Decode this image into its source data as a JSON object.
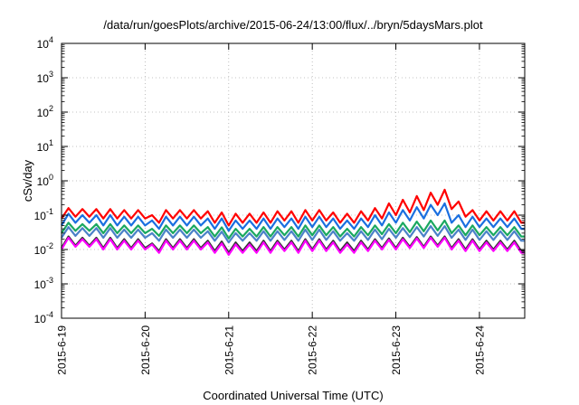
{
  "chart_data": {
    "type": "line",
    "title": "/data/run/goesPlots/archive/2015-06-24/13:00/flux/../bryn/5daysMars.plot",
    "xlabel": "Coordinated Universal Time (UTC)",
    "ylabel": "cSv/day",
    "yscale": "log",
    "ylim": [
      0.0001,
      10000
    ],
    "xlim": [
      "2015-06-19T00:00",
      "2015-06-24T13:00"
    ],
    "grid": true,
    "x_ticks": [
      "2015-6-19",
      "2015-6-20",
      "2015-6-21",
      "2015-6-22",
      "2015-6-23",
      "2015-6-24"
    ],
    "y_ticks": [
      {
        "base": "10",
        "exp": "-4"
      },
      {
        "base": "10",
        "exp": "-3"
      },
      {
        "base": "10",
        "exp": "-2"
      },
      {
        "base": "10",
        "exp": "-1"
      },
      {
        "base": "10",
        "exp": "0"
      },
      {
        "base": "10",
        "exp": "1"
      },
      {
        "base": "10",
        "exp": "2"
      },
      {
        "base": "10",
        "exp": "3"
      },
      {
        "base": "10",
        "exp": "4"
      }
    ],
    "x_hours": [
      0,
      2,
      4,
      6,
      8,
      10,
      12,
      14,
      16,
      18,
      20,
      22,
      24,
      26,
      28,
      30,
      32,
      34,
      36,
      38,
      40,
      42,
      44,
      46,
      48,
      50,
      52,
      54,
      56,
      58,
      60,
      62,
      64,
      66,
      68,
      70,
      72,
      74,
      76,
      78,
      80,
      82,
      84,
      86,
      88,
      90,
      92,
      94,
      96,
      98,
      100,
      102,
      104,
      106,
      108,
      110,
      112,
      114,
      116,
      118,
      120,
      122,
      124,
      126,
      128,
      130,
      132,
      133
    ],
    "x_unit": "hours since 2015-6-19 00:00 UTC",
    "series": [
      {
        "color": "#ff0000",
        "values": [
          0.08,
          0.16,
          0.09,
          0.15,
          0.09,
          0.15,
          0.08,
          0.15,
          0.08,
          0.14,
          0.08,
          0.14,
          0.08,
          0.1,
          0.06,
          0.14,
          0.08,
          0.14,
          0.08,
          0.14,
          0.08,
          0.13,
          0.06,
          0.12,
          0.05,
          0.11,
          0.06,
          0.11,
          0.06,
          0.12,
          0.06,
          0.13,
          0.07,
          0.13,
          0.06,
          0.14,
          0.07,
          0.14,
          0.07,
          0.12,
          0.06,
          0.11,
          0.06,
          0.13,
          0.07,
          0.16,
          0.08,
          0.22,
          0.1,
          0.28,
          0.12,
          0.36,
          0.14,
          0.45,
          0.2,
          0.55,
          0.15,
          0.25,
          0.09,
          0.14,
          0.07,
          0.13,
          0.07,
          0.13,
          0.07,
          0.13,
          0.06,
          0.06
        ]
      },
      {
        "color": "#1a6fe0",
        "values": [
          0.05,
          0.11,
          0.06,
          0.1,
          0.06,
          0.1,
          0.05,
          0.1,
          0.05,
          0.09,
          0.05,
          0.09,
          0.05,
          0.07,
          0.04,
          0.09,
          0.05,
          0.09,
          0.05,
          0.09,
          0.05,
          0.08,
          0.04,
          0.08,
          0.035,
          0.07,
          0.04,
          0.07,
          0.04,
          0.08,
          0.04,
          0.08,
          0.045,
          0.08,
          0.04,
          0.09,
          0.045,
          0.09,
          0.045,
          0.08,
          0.04,
          0.07,
          0.04,
          0.08,
          0.045,
          0.1,
          0.05,
          0.12,
          0.06,
          0.14,
          0.07,
          0.17,
          0.08,
          0.2,
          0.1,
          0.22,
          0.06,
          0.1,
          0.045,
          0.09,
          0.045,
          0.08,
          0.045,
          0.08,
          0.045,
          0.08,
          0.04,
          0.04
        ]
      },
      {
        "color": "#1aa860",
        "values": [
          0.03,
          0.06,
          0.035,
          0.055,
          0.035,
          0.055,
          0.03,
          0.055,
          0.03,
          0.05,
          0.03,
          0.05,
          0.03,
          0.04,
          0.025,
          0.05,
          0.03,
          0.05,
          0.03,
          0.05,
          0.03,
          0.045,
          0.024,
          0.044,
          0.021,
          0.04,
          0.024,
          0.04,
          0.024,
          0.045,
          0.024,
          0.045,
          0.026,
          0.045,
          0.024,
          0.05,
          0.026,
          0.05,
          0.026,
          0.045,
          0.024,
          0.04,
          0.024,
          0.045,
          0.026,
          0.05,
          0.028,
          0.055,
          0.03,
          0.06,
          0.032,
          0.065,
          0.034,
          0.07,
          0.036,
          0.07,
          0.03,
          0.05,
          0.026,
          0.05,
          0.026,
          0.045,
          0.026,
          0.045,
          0.026,
          0.045,
          0.024,
          0.024
        ]
      },
      {
        "color": "#4b82c8",
        "values": [
          0.022,
          0.045,
          0.025,
          0.042,
          0.025,
          0.042,
          0.022,
          0.042,
          0.022,
          0.038,
          0.022,
          0.038,
          0.022,
          0.03,
          0.018,
          0.038,
          0.022,
          0.038,
          0.022,
          0.038,
          0.022,
          0.034,
          0.018,
          0.033,
          0.016,
          0.03,
          0.018,
          0.03,
          0.018,
          0.034,
          0.018,
          0.034,
          0.019,
          0.034,
          0.018,
          0.038,
          0.019,
          0.038,
          0.019,
          0.034,
          0.018,
          0.03,
          0.018,
          0.034,
          0.019,
          0.038,
          0.02,
          0.04,
          0.022,
          0.042,
          0.023,
          0.045,
          0.024,
          0.048,
          0.025,
          0.048,
          0.022,
          0.038,
          0.019,
          0.038,
          0.019,
          0.034,
          0.019,
          0.034,
          0.019,
          0.034,
          0.018,
          0.018
        ]
      },
      {
        "color": "#333333",
        "values": [
          0.011,
          0.024,
          0.013,
          0.022,
          0.013,
          0.022,
          0.011,
          0.022,
          0.011,
          0.02,
          0.011,
          0.02,
          0.011,
          0.015,
          0.009,
          0.02,
          0.011,
          0.02,
          0.011,
          0.02,
          0.011,
          0.018,
          0.009,
          0.017,
          0.008,
          0.016,
          0.009,
          0.016,
          0.009,
          0.018,
          0.009,
          0.018,
          0.01,
          0.018,
          0.009,
          0.02,
          0.01,
          0.02,
          0.01,
          0.018,
          0.009,
          0.016,
          0.009,
          0.018,
          0.01,
          0.02,
          0.011,
          0.021,
          0.011,
          0.022,
          0.012,
          0.023,
          0.012,
          0.024,
          0.013,
          0.024,
          0.011,
          0.02,
          0.01,
          0.02,
          0.01,
          0.018,
          0.01,
          0.018,
          0.01,
          0.018,
          0.009,
          0.009
        ]
      },
      {
        "color": "#ff00ff",
        "values": [
          0.01,
          0.022,
          0.012,
          0.02,
          0.012,
          0.02,
          0.01,
          0.02,
          0.01,
          0.018,
          0.01,
          0.018,
          0.01,
          0.014,
          0.008,
          0.018,
          0.01,
          0.018,
          0.01,
          0.018,
          0.01,
          0.016,
          0.008,
          0.015,
          0.007,
          0.014,
          0.008,
          0.014,
          0.008,
          0.016,
          0.008,
          0.016,
          0.009,
          0.016,
          0.008,
          0.018,
          0.009,
          0.018,
          0.009,
          0.016,
          0.008,
          0.014,
          0.008,
          0.016,
          0.009,
          0.018,
          0.01,
          0.019,
          0.01,
          0.02,
          0.011,
          0.021,
          0.011,
          0.022,
          0.012,
          0.022,
          0.01,
          0.018,
          0.009,
          0.018,
          0.009,
          0.016,
          0.009,
          0.016,
          0.009,
          0.016,
          0.008,
          0.008
        ]
      }
    ]
  }
}
